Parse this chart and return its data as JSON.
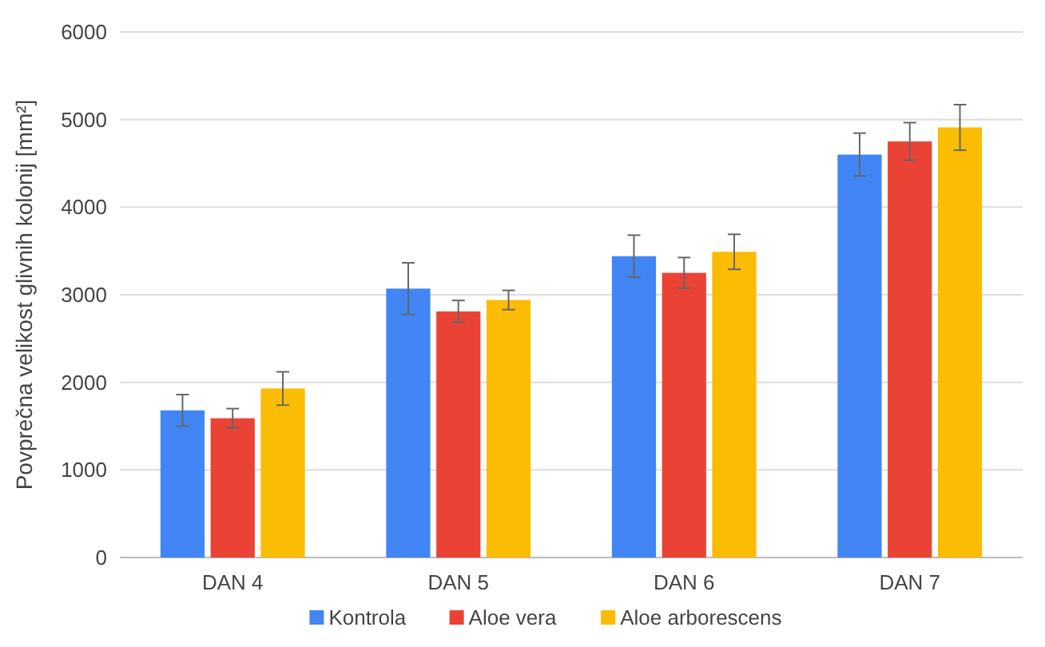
{
  "chart_data": {
    "type": "bar",
    "ylabel": "Povprečna velikost glivnih kolonij [mm²]",
    "categories": [
      "DAN 4",
      "DAN 5",
      "DAN 6",
      "DAN 7"
    ],
    "series": [
      {
        "name": "Kontrola",
        "color": "#4285f4",
        "values": [
          1680,
          3070,
          3440,
          4600
        ],
        "errors": [
          180,
          295,
          240,
          245
        ]
      },
      {
        "name": "Aloe vera",
        "color": "#ea4335",
        "values": [
          1590,
          2810,
          3250,
          4750
        ],
        "errors": [
          110,
          125,
          175,
          215
        ]
      },
      {
        "name": "Aloe arborescens",
        "color": "#fbbc04",
        "values": [
          1930,
          2940,
          3490,
          4910
        ],
        "errors": [
          190,
          110,
          200,
          260
        ]
      }
    ],
    "ylim": [
      0,
      6000
    ],
    "yticks": [
      0,
      1000,
      2000,
      3000,
      4000,
      5000,
      6000
    ],
    "grid": "y",
    "legend": "bottom"
  }
}
